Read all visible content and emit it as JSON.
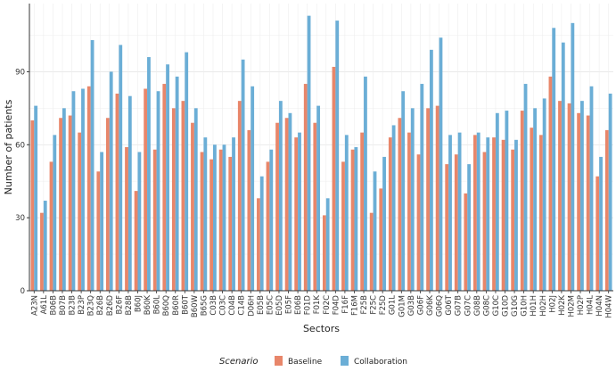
{
  "chart_data": {
    "type": "bar",
    "xlabel": "Sectors",
    "ylabel": "Number of patients",
    "yticks": [
      0,
      30,
      60,
      90
    ],
    "ylim": [
      0,
      118
    ],
    "grid": true,
    "legend_position": "bottom",
    "legend_title": "Scenario",
    "colors": {
      "Baseline": "#E8866A",
      "Collaboration": "#6BAED6"
    },
    "categories": [
      "A23N",
      "A61L",
      "B06B",
      "B07B",
      "B23B",
      "B23P",
      "B23Q",
      "B26B",
      "B26D",
      "B26F",
      "B28B",
      "B60J",
      "B60K",
      "B60L",
      "B60Q",
      "B60R",
      "B60T",
      "B60W",
      "B65G",
      "C03B",
      "C03C",
      "C04B",
      "C14B",
      "D06H",
      "E05B",
      "E05C",
      "E05D",
      "E05F",
      "E06B",
      "F01D",
      "F01K",
      "F02C",
      "F04D",
      "F16F",
      "F16M",
      "F25B",
      "F25C",
      "F25D",
      "G01L",
      "G01M",
      "G03B",
      "G06F",
      "G06K",
      "G06Q",
      "G06T",
      "G07B",
      "G07C",
      "G08B",
      "G08C",
      "G10C",
      "G10D",
      "G10G",
      "G10H",
      "H01H",
      "H02H",
      "H02J",
      "H02K",
      "H02M",
      "H02P",
      "H04L",
      "H04N",
      "H04W"
    ],
    "series": [
      {
        "name": "Baseline",
        "values": [
          70,
          32,
          53,
          71,
          72,
          65,
          84,
          49,
          71,
          81,
          59,
          41,
          83,
          58,
          85,
          75,
          78,
          69,
          57,
          54,
          58,
          55,
          78,
          66,
          38,
          53,
          69,
          71,
          63,
          85,
          69,
          31,
          92,
          53,
          58,
          65,
          32,
          42,
          63,
          71,
          65,
          56,
          75,
          76,
          52,
          56,
          40,
          64,
          57,
          63,
          62,
          58,
          74,
          67,
          64,
          88,
          78,
          77,
          73,
          72,
          47,
          66
        ]
      },
      {
        "name": "Collaboration",
        "values": [
          76,
          37,
          64,
          75,
          82,
          83,
          103,
          57,
          90,
          101,
          80,
          57,
          96,
          82,
          93,
          88,
          98,
          75,
          63,
          60,
          60,
          63,
          95,
          84,
          47,
          58,
          78,
          73,
          65,
          113,
          76,
          38,
          111,
          64,
          59,
          88,
          49,
          55,
          68,
          82,
          75,
          85,
          99,
          104,
          64,
          65,
          52,
          65,
          63,
          73,
          74,
          62,
          85,
          75,
          79,
          108,
          102,
          110,
          78,
          84,
          55,
          81
        ]
      }
    ]
  }
}
